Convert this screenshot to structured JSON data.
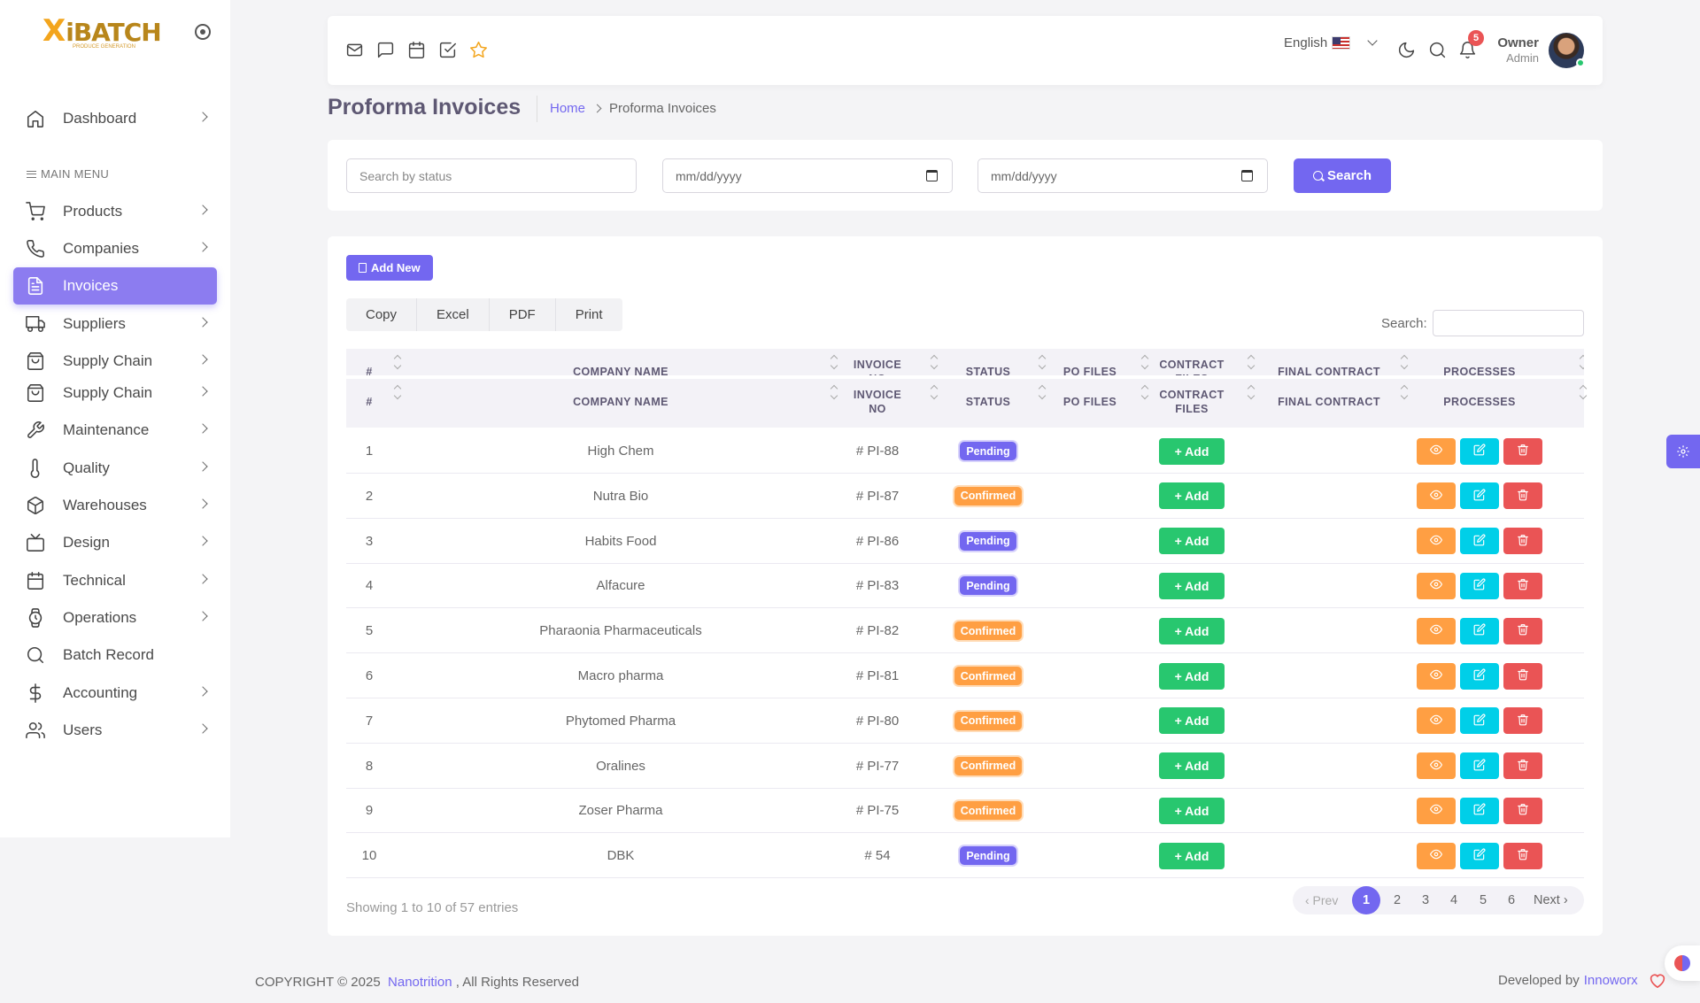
{
  "app": {
    "logo_mark": "X",
    "logo_word": "iBATCH",
    "logo_sub": "PRODUCE GENERATION"
  },
  "sidebar": {
    "menu_header": "MAIN MENU",
    "items": [
      {
        "label": "Dashboard",
        "icon": "home-icon",
        "chevron": true
      },
      {
        "label": "Products",
        "icon": "cart-icon",
        "chevron": true
      },
      {
        "label": "Companies",
        "icon": "phone-icon",
        "chevron": true
      },
      {
        "label": "Invoices",
        "icon": "file-text-icon",
        "chevron": false,
        "active": true
      },
      {
        "label": "Suppliers",
        "icon": "truck-icon",
        "chevron": true
      },
      {
        "label": "Supply Chain",
        "icon": "shopping-bag-icon",
        "chevron": true
      },
      {
        "label": "Supply Chain",
        "icon": "shopping-bag-icon",
        "chevron": true
      },
      {
        "label": "Maintenance",
        "icon": "tool-icon",
        "chevron": true
      },
      {
        "label": "Quality",
        "icon": "thermometer-icon",
        "chevron": true
      },
      {
        "label": "Warehouses",
        "icon": "package-icon",
        "chevron": true
      },
      {
        "label": "Design",
        "icon": "tv-icon",
        "chevron": true
      },
      {
        "label": "Technical",
        "icon": "calendar-icon",
        "chevron": true
      },
      {
        "label": "Operations",
        "icon": "watch-icon",
        "chevron": true
      },
      {
        "label": "Batch Record",
        "icon": "search-icon",
        "chevron": false
      },
      {
        "label": "Accounting",
        "icon": "dollar-icon",
        "chevron": true
      },
      {
        "label": "Users",
        "icon": "users-icon",
        "chevron": true
      }
    ]
  },
  "header": {
    "language": "English",
    "notification_count": "5",
    "user_name": "Owner",
    "user_role": "Admin"
  },
  "page": {
    "title": "Proforma Invoices",
    "breadcrumb_home": "Home",
    "breadcrumb_current": "Proforma Invoices"
  },
  "filters": {
    "status_placeholder": "Search by status",
    "date_from": "mm/dd/yyyy",
    "date_to": "mm/dd/yyyy",
    "search_label": "Search"
  },
  "table": {
    "add_new_label": "Add New",
    "export_buttons": [
      "Copy",
      "Excel",
      "PDF",
      "Print"
    ],
    "search_label": "Search:",
    "headers": {
      "num": "#",
      "company": "COMPANY NAME",
      "invoice_line1": "INVOICE",
      "invoice_line2": "NO",
      "status": "STATUS",
      "po_files": "PO FILES",
      "contract_line1": "CONTRACT",
      "contract_line2": "FILES",
      "final_contract": "FINAL CONTRACT",
      "processes": "PROCESSES"
    },
    "add_button_label": "+ Add",
    "rows": [
      {
        "num": "1",
        "company": "High Chem",
        "invoice": "# PI-88",
        "status": "Pending"
      },
      {
        "num": "2",
        "company": "Nutra Bio",
        "invoice": "# PI-87",
        "status": "Confirmed"
      },
      {
        "num": "3",
        "company": "Habits Food",
        "invoice": "# PI-86",
        "status": "Pending"
      },
      {
        "num": "4",
        "company": "Alfacure",
        "invoice": "# PI-83",
        "status": "Pending"
      },
      {
        "num": "5",
        "company": "Pharaonia Pharmaceuticals",
        "invoice": "# PI-82",
        "status": "Confirmed"
      },
      {
        "num": "6",
        "company": "Macro pharma",
        "invoice": "# PI-81",
        "status": "Confirmed"
      },
      {
        "num": "7",
        "company": "Phytomed Pharma",
        "invoice": "# PI-80",
        "status": "Confirmed"
      },
      {
        "num": "8",
        "company": "Oralines",
        "invoice": "# PI-77",
        "status": "Confirmed"
      },
      {
        "num": "9",
        "company": "Zoser Pharma",
        "invoice": "# PI-75",
        "status": "Confirmed"
      },
      {
        "num": "10",
        "company": "DBK",
        "invoice": "# 54",
        "status": "Pending"
      }
    ],
    "showing": "Showing 1 to 10 of 57 entries",
    "pagination": {
      "prev": "‹ Prev",
      "pages": [
        "1",
        "2",
        "3",
        "4",
        "5",
        "6"
      ],
      "current": "1",
      "next": "Next ›"
    }
  },
  "footer": {
    "copyright": "COPYRIGHT © 2025",
    "brand": "Nanotrition",
    "rights": ", All Rights Reserved",
    "developed_by": "Developed by",
    "developer": "Innoworx"
  },
  "colors": {
    "primary": "#7367f0",
    "success": "#28c76f",
    "warning": "#ff9f43",
    "info": "#00cfe8",
    "danger": "#ea5455"
  }
}
